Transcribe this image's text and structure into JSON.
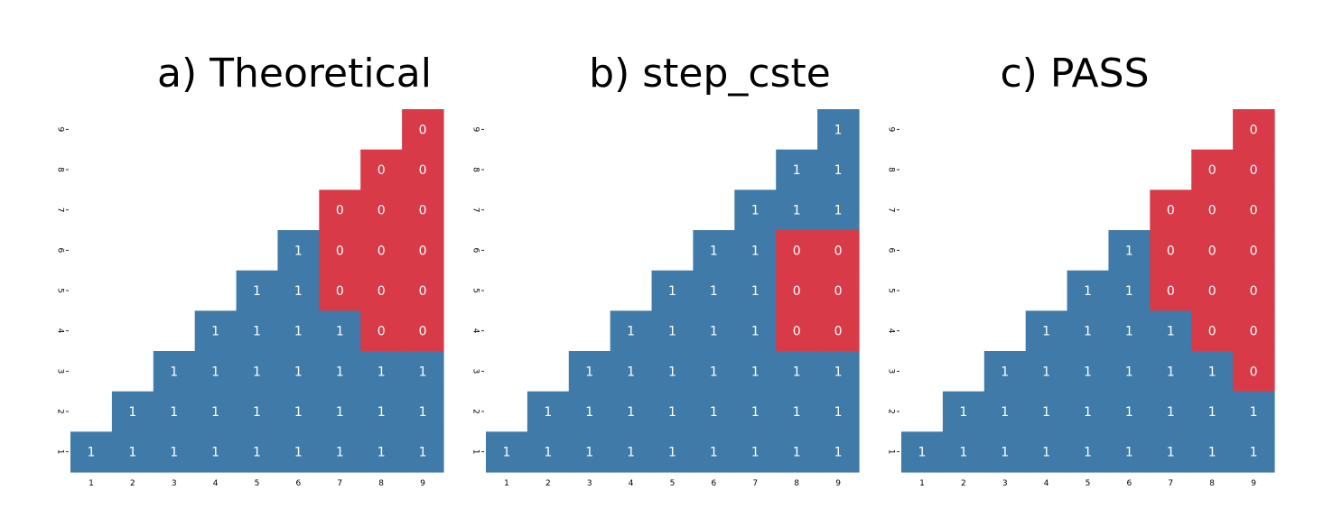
{
  "colors": {
    "one": "#3f7aa9",
    "zero": "#d93a48",
    "cell_text": "#ffffff",
    "background": "#ffffff"
  },
  "chart_data": [
    {
      "type": "heatmap",
      "title": "a) Theoretical",
      "x_ticks": [
        "1",
        "2",
        "3",
        "4",
        "5",
        "6",
        "7",
        "8",
        "9"
      ],
      "y_ticks": [
        "1",
        "2",
        "3",
        "4",
        "5",
        "6",
        "7",
        "8",
        "9"
      ],
      "triangle": "upper",
      "rows": [
        {
          "y": "9",
          "x_start": 9,
          "values": [
            0
          ]
        },
        {
          "y": "8",
          "x_start": 8,
          "values": [
            0,
            0
          ]
        },
        {
          "y": "7",
          "x_start": 7,
          "values": [
            0,
            0,
            0
          ]
        },
        {
          "y": "6",
          "x_start": 6,
          "values": [
            1,
            0,
            0,
            0
          ]
        },
        {
          "y": "5",
          "x_start": 5,
          "values": [
            1,
            1,
            0,
            0,
            0
          ]
        },
        {
          "y": "4",
          "x_start": 4,
          "values": [
            1,
            1,
            1,
            1,
            0,
            0
          ]
        },
        {
          "y": "3",
          "x_start": 3,
          "values": [
            1,
            1,
            1,
            1,
            1,
            1,
            1
          ]
        },
        {
          "y": "2",
          "x_start": 2,
          "values": [
            1,
            1,
            1,
            1,
            1,
            1,
            1,
            1
          ]
        },
        {
          "y": "1",
          "x_start": 1,
          "values": [
            1,
            1,
            1,
            1,
            1,
            1,
            1,
            1,
            1
          ]
        }
      ]
    },
    {
      "type": "heatmap",
      "title": "b) step_cste",
      "x_ticks": [
        "1",
        "2",
        "3",
        "4",
        "5",
        "6",
        "7",
        "8",
        "9"
      ],
      "y_ticks": [
        "1",
        "2",
        "3",
        "4",
        "5",
        "6",
        "7",
        "8",
        "9"
      ],
      "triangle": "upper",
      "rows": [
        {
          "y": "9",
          "x_start": 9,
          "values": [
            1
          ]
        },
        {
          "y": "8",
          "x_start": 8,
          "values": [
            1,
            1
          ]
        },
        {
          "y": "7",
          "x_start": 7,
          "values": [
            1,
            1,
            1
          ]
        },
        {
          "y": "6",
          "x_start": 6,
          "values": [
            1,
            1,
            0,
            0
          ]
        },
        {
          "y": "5",
          "x_start": 5,
          "values": [
            1,
            1,
            1,
            0,
            0
          ]
        },
        {
          "y": "4",
          "x_start": 4,
          "values": [
            1,
            1,
            1,
            1,
            0,
            0
          ]
        },
        {
          "y": "3",
          "x_start": 3,
          "values": [
            1,
            1,
            1,
            1,
            1,
            1,
            1
          ]
        },
        {
          "y": "2",
          "x_start": 2,
          "values": [
            1,
            1,
            1,
            1,
            1,
            1,
            1,
            1
          ]
        },
        {
          "y": "1",
          "x_start": 1,
          "values": [
            1,
            1,
            1,
            1,
            1,
            1,
            1,
            1,
            1
          ]
        }
      ]
    },
    {
      "type": "heatmap",
      "title": "c) PASS",
      "x_ticks": [
        "1",
        "2",
        "3",
        "4",
        "5",
        "6",
        "7",
        "8",
        "9"
      ],
      "y_ticks": [
        "1",
        "2",
        "3",
        "4",
        "5",
        "6",
        "7",
        "8",
        "9"
      ],
      "triangle": "upper",
      "rows": [
        {
          "y": "9",
          "x_start": 9,
          "values": [
            0
          ]
        },
        {
          "y": "8",
          "x_start": 8,
          "values": [
            0,
            0
          ]
        },
        {
          "y": "7",
          "x_start": 7,
          "values": [
            0,
            0,
            0
          ]
        },
        {
          "y": "6",
          "x_start": 6,
          "values": [
            1,
            0,
            0,
            0
          ]
        },
        {
          "y": "5",
          "x_start": 5,
          "values": [
            1,
            1,
            0,
            0,
            0
          ]
        },
        {
          "y": "4",
          "x_start": 4,
          "values": [
            1,
            1,
            1,
            1,
            0,
            0
          ]
        },
        {
          "y": "3",
          "x_start": 3,
          "values": [
            1,
            1,
            1,
            1,
            1,
            1,
            0
          ]
        },
        {
          "y": "2",
          "x_start": 2,
          "values": [
            1,
            1,
            1,
            1,
            1,
            1,
            1,
            1
          ]
        },
        {
          "y": "1",
          "x_start": 1,
          "values": [
            1,
            1,
            1,
            1,
            1,
            1,
            1,
            1,
            1
          ]
        }
      ]
    }
  ]
}
